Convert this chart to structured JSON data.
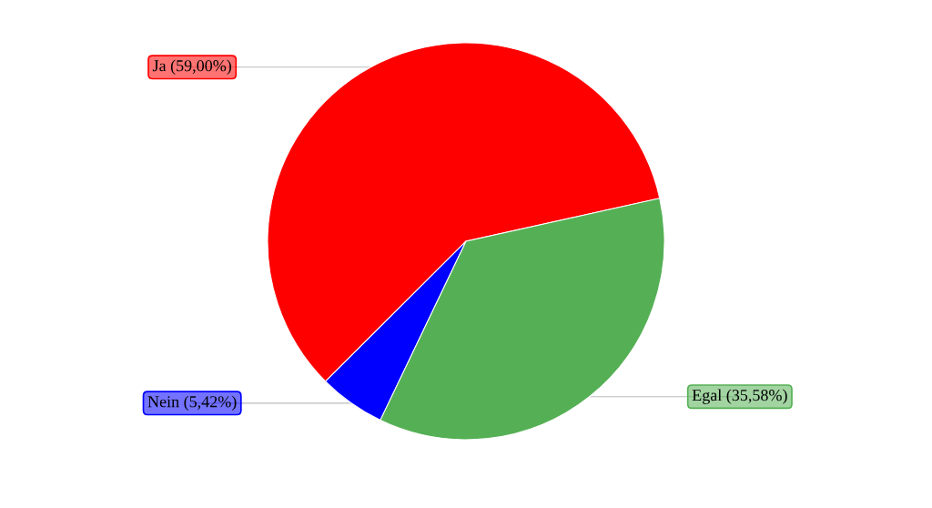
{
  "chart_data": {
    "type": "pie",
    "categories": [
      "Ja (59,00%)",
      "Nein (5,42%)",
      "Egal (35,58%)"
    ],
    "values": [
      59.0,
      5.42,
      35.58
    ],
    "colors": [
      "#ff0000",
      "#0000ff",
      "#55b055"
    ]
  }
}
